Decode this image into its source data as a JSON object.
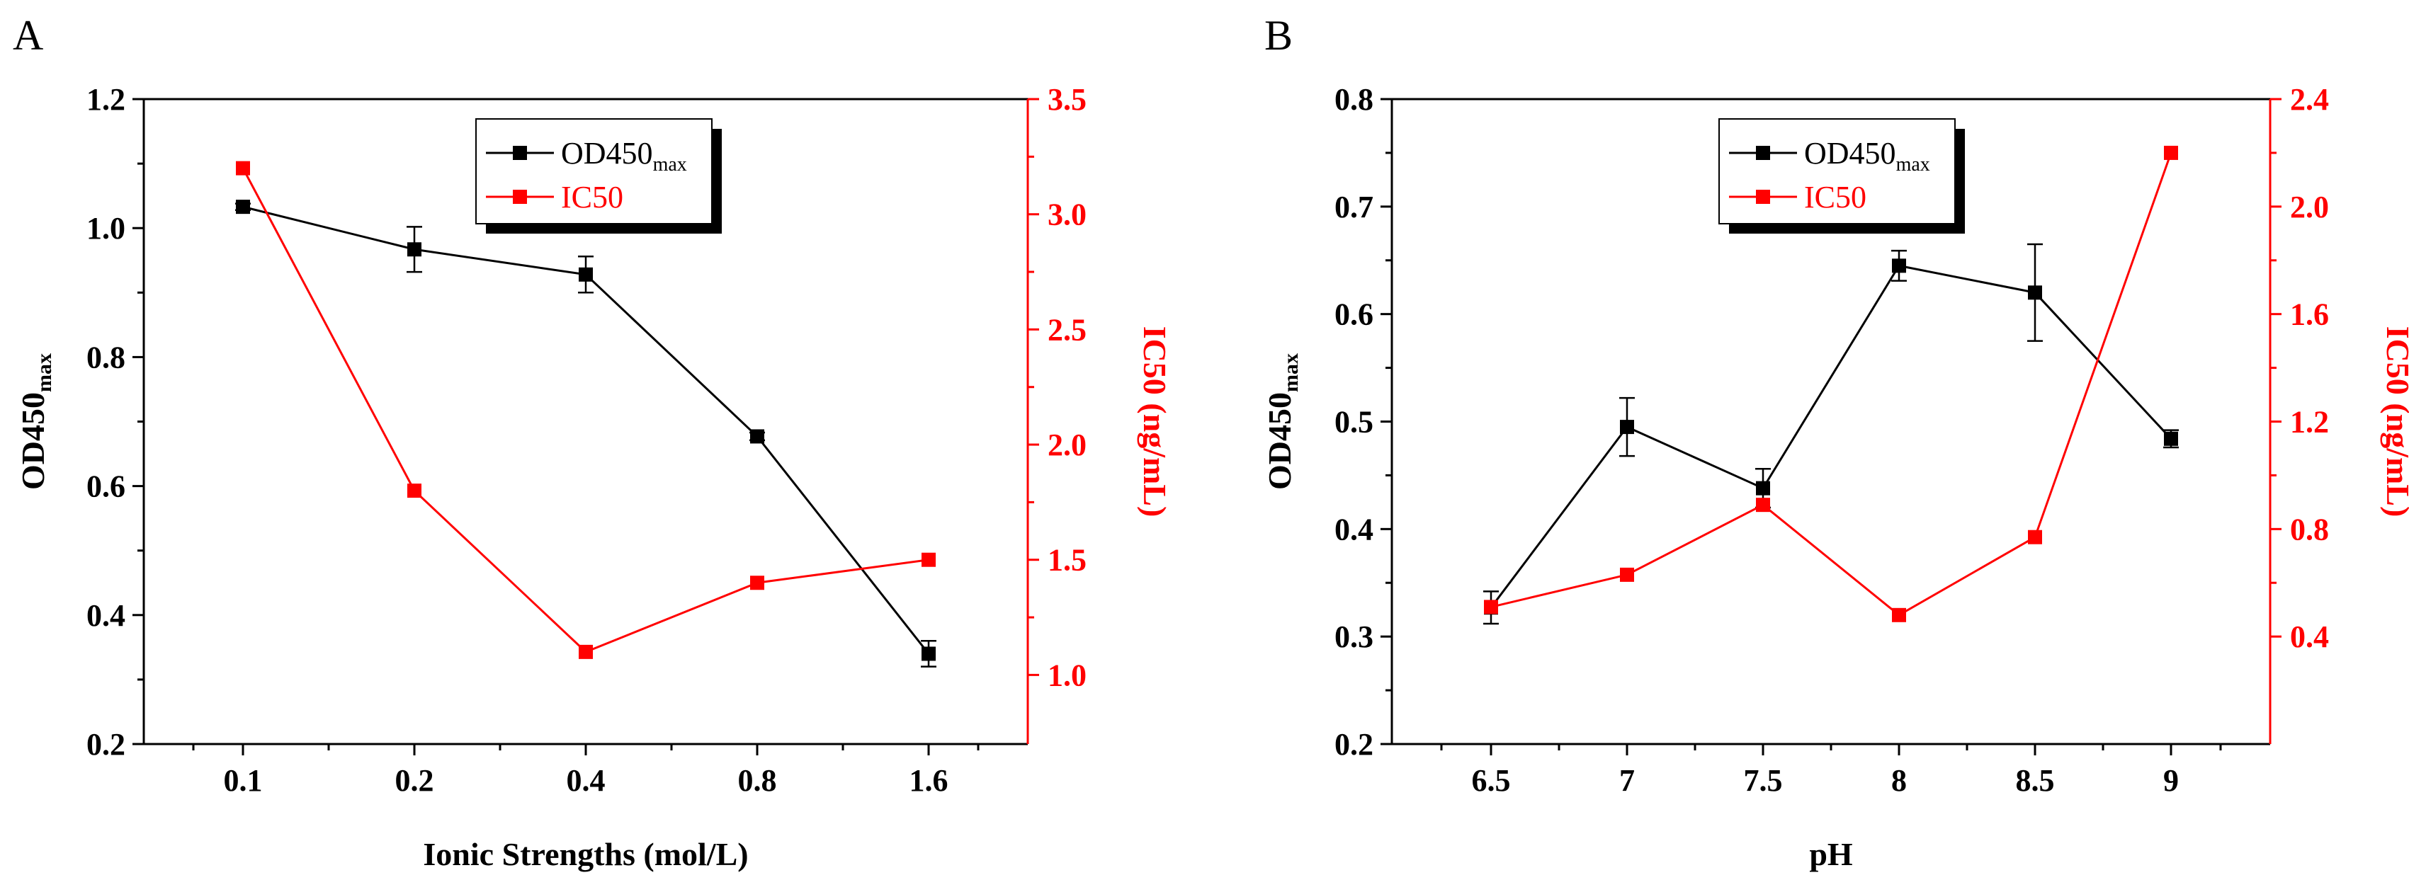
{
  "chart_data": [
    {
      "type": "line",
      "panel": "A",
      "categories": [
        "0.1",
        "0.2",
        "0.4",
        "0.8",
        "1.6"
      ],
      "xlabel": "Ionic Strengths (mol/L)",
      "ylabel": {
        "base": "OD450",
        "sub": "max"
      },
      "y2label": "IC50 (ng/mL)",
      "ylim": [
        0.2,
        1.2
      ],
      "yticks": [
        "0.2",
        "0.4",
        "0.6",
        "0.8",
        "1.0",
        "1.2"
      ],
      "y2lim": [
        0.7,
        3.5
      ],
      "y2ticks": [
        "1.0",
        "1.5",
        "2.0",
        "2.5",
        "3.0",
        "3.5"
      ],
      "legend_position": "top-center",
      "series": [
        {
          "name": "OD450",
          "sub": "max",
          "axis": "left",
          "color": "#000000",
          "values": [
            1.033,
            0.967,
            0.928,
            0.677,
            0.34
          ],
          "errors": [
            0.005,
            0.035,
            0.028,
            0.006,
            0.02
          ]
        },
        {
          "name": "IC50",
          "sub": "",
          "axis": "right",
          "color": "#ff0000",
          "values": [
            3.2,
            1.8,
            1.1,
            1.4,
            1.5
          ]
        }
      ]
    },
    {
      "type": "line",
      "panel": "B",
      "categories": [
        "6.5",
        "7",
        "7.5",
        "8",
        "8.5",
        "9"
      ],
      "xlabel": "pH",
      "ylabel": {
        "base": "OD450",
        "sub": "max"
      },
      "y2label": "IC50 (ng/mL)",
      "ylim": [
        0.2,
        0.8
      ],
      "yticks": [
        "0.2",
        "0.3",
        "0.4",
        "0.5",
        "0.6",
        "0.7",
        "0.8"
      ],
      "y2lim": [
        0.0,
        2.4
      ],
      "y2ticks": [
        "0.4",
        "0.8",
        "1.2",
        "1.6",
        "2.0",
        "2.4"
      ],
      "legend_position": "top-center",
      "series": [
        {
          "name": "OD450",
          "sub": "max",
          "axis": "left",
          "color": "#000000",
          "values": [
            0.327,
            0.495,
            0.438,
            0.645,
            0.62,
            0.484
          ],
          "errors": [
            0.015,
            0.027,
            0.018,
            0.014,
            0.045,
            0.008
          ]
        },
        {
          "name": "IC50",
          "sub": "",
          "axis": "right",
          "color": "#ff0000",
          "values": [
            0.51,
            0.63,
            0.89,
            0.48,
            0.77,
            2.2
          ]
        }
      ]
    }
  ]
}
